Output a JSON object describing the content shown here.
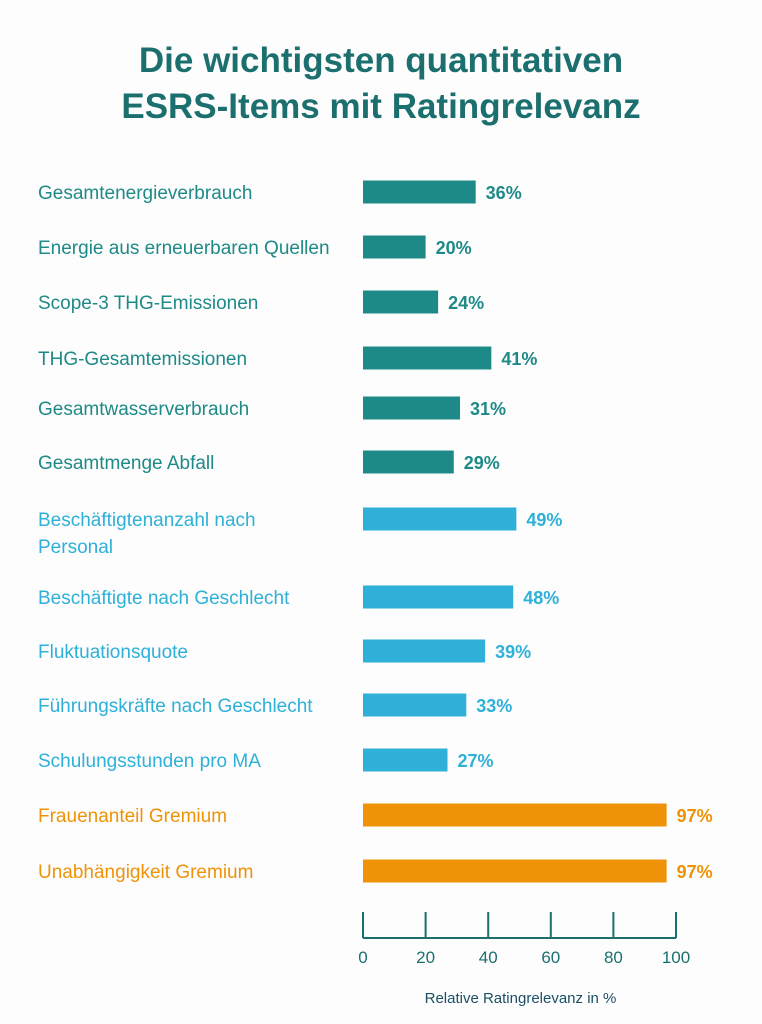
{
  "title_lines": [
    "Die wichtigsten quantitativen",
    "ESRS-Items mit Ratingrelevanz"
  ],
  "colors": {
    "title": "#1b6f6e",
    "group_environment": "#1e8a87",
    "group_social": "#2eb0d8",
    "group_governance": "#ee9308",
    "axis": "#1b6f6e"
  },
  "chart_data": {
    "type": "bar",
    "orientation": "horizontal",
    "title": "Die wichtigsten quantitativen ESRS-Items mit Ratingrelevanz",
    "xlabel": "Relative Ratingrelevanz in %",
    "ylabel": "",
    "xlim": [
      0,
      100
    ],
    "xticks": [
      0,
      20,
      40,
      60,
      80,
      100
    ],
    "value_suffix": "%",
    "bars": [
      {
        "label": [
          "Gesamtenergieverbrauch"
        ],
        "value": 36,
        "group": "environment"
      },
      {
        "label": [
          "Energie aus erneuerbaren Quellen"
        ],
        "value": 20,
        "group": "environment"
      },
      {
        "label": [
          "Scope-3 THG-Emissionen"
        ],
        "value": 24,
        "group": "environment"
      },
      {
        "label": [
          "THG-Gesamtemissionen"
        ],
        "value": 41,
        "group": "environment"
      },
      {
        "label": [
          "Gesamtwasserverbrauch"
        ],
        "value": 31,
        "group": "environment"
      },
      {
        "label": [
          "Gesamtmenge Abfall"
        ],
        "value": 29,
        "group": "environment"
      },
      {
        "label": [
          "Beschäftigtenanzahl nach",
          "Personal"
        ],
        "value": 49,
        "group": "social"
      },
      {
        "label": [
          "Beschäftigte nach Geschlecht"
        ],
        "value": 48,
        "group": "social"
      },
      {
        "label": [
          "Fluktuationsquote"
        ],
        "value": 39,
        "group": "social"
      },
      {
        "label": [
          "Führungskräfte nach Geschlecht"
        ],
        "value": 33,
        "group": "social"
      },
      {
        "label": [
          "Schulungsstunden pro MA"
        ],
        "value": 27,
        "group": "social"
      },
      {
        "label": [
          "Frauenanteil Gremium"
        ],
        "value": 97,
        "group": "governance"
      },
      {
        "label": [
          "Unabhängigkeit Gremium"
        ],
        "value": 97,
        "group": "governance"
      }
    ]
  }
}
